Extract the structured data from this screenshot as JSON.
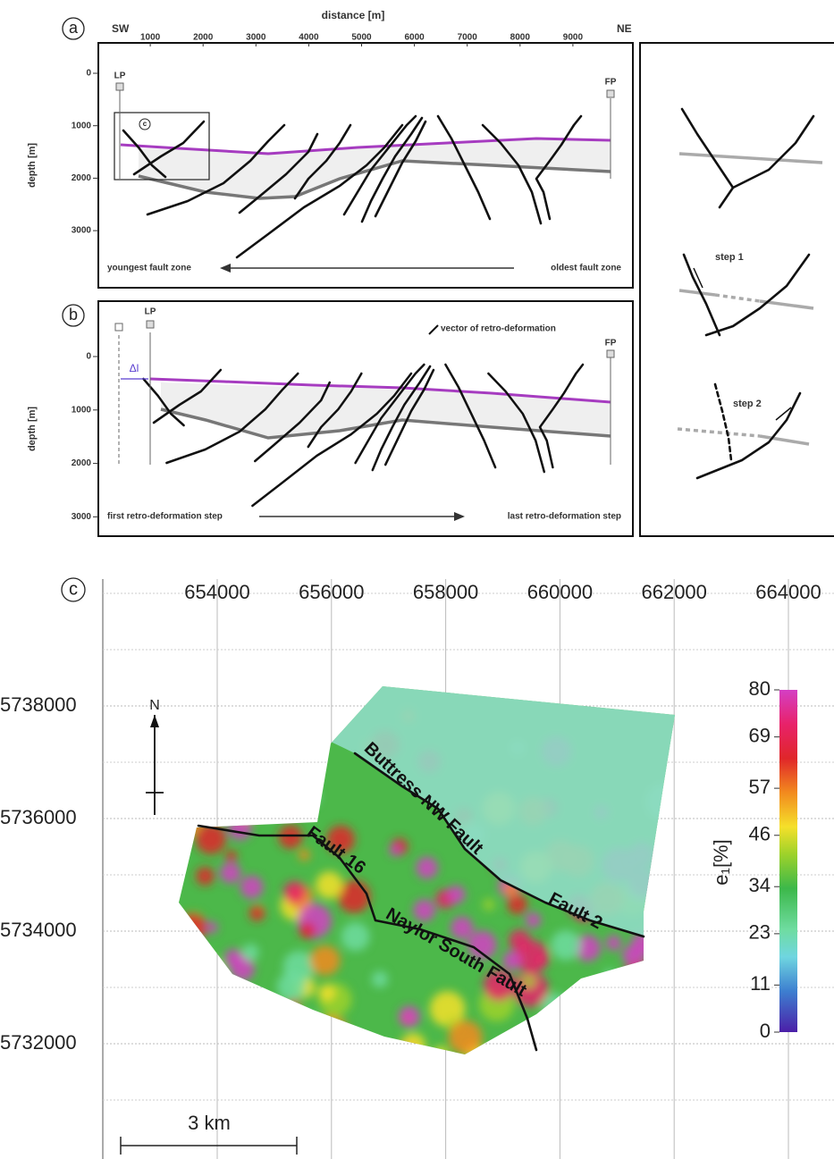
{
  "panel_a": {
    "label": "a",
    "x_title": "distance [m]",
    "sw": "SW",
    "ne": "NE",
    "x_ticks": [
      1000,
      2000,
      3000,
      4000,
      5000,
      6000,
      7000,
      8000,
      9000
    ],
    "y_title": "depth [m]",
    "y_ticks": [
      0,
      1000,
      2000,
      3000
    ],
    "lp": "LP",
    "fp": "FP",
    "inset_label": "c",
    "left_note": "youngest fault zone",
    "right_note": "oldest fault zone"
  },
  "panel_b": {
    "label": "b",
    "legend": "vector of retro-deformation",
    "y_title": "depth [m]",
    "y_ticks": [
      0,
      1000,
      2000,
      3000
    ],
    "lp": "LP",
    "fp": "FP",
    "delta": "Δl",
    "left_note": "first retro-deformation step",
    "right_note": "last retro-deformation step"
  },
  "panel_steps": {
    "step_1": "step 1",
    "step_2": "step 2"
  },
  "panel_c": {
    "label": "c",
    "x_ticks": [
      654000,
      656000,
      658000,
      660000,
      662000,
      664000
    ],
    "y_ticks": [
      5738000,
      5736000,
      5734000,
      5732000
    ],
    "north": "N",
    "scale_bar": "3 km",
    "faults": [
      "Buttress NW Fault",
      "Fault 2",
      "Fault 16",
      "Naylor South Fault"
    ],
    "colorbar": {
      "title": "e₁[%]",
      "ticks": [
        80,
        69,
        57,
        46,
        34,
        23,
        11,
        0
      ],
      "lim": [
        0,
        80
      ]
    }
  }
}
